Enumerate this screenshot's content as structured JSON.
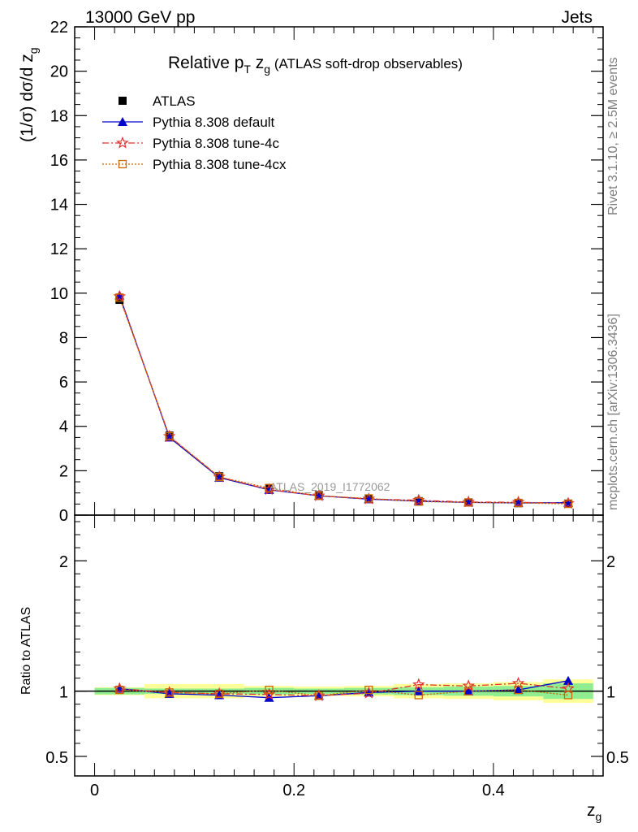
{
  "header": {
    "left": "13000 GeV pp",
    "right": "Jets"
  },
  "side_labels": {
    "rivet": "Rivet 3.1.10, ≥ 2.5M events",
    "mcplots": "mcplots.cern.ch [arXiv:1306.3436]"
  },
  "chart_data": [
    {
      "type": "line",
      "panel": "main",
      "title_main": "Relative p",
      "title_sub_t": "T",
      "title_z": " z",
      "title_sub_g": "g",
      "title_paren": " (ATLAS soft-drop observables)",
      "ylabel": "(1/σ) dσ/d z",
      "ylabel_sub": "g",
      "watermark": "ATLAS_2019_I1772062",
      "xlim": [
        -0.02,
        0.51
      ],
      "ylim": [
        0,
        22
      ],
      "yticks": [
        "0",
        "2",
        "4",
        "6",
        "8",
        "10",
        "12",
        "14",
        "16",
        "18",
        "20",
        "22"
      ],
      "x": [
        0.025,
        0.075,
        0.125,
        0.175,
        0.225,
        0.275,
        0.325,
        0.375,
        0.425,
        0.475
      ],
      "legend_position": "top-left",
      "series": [
        {
          "name": "ATLAS",
          "color": "#000000",
          "marker": "square-filled",
          "line": "none",
          "values": [
            9.7,
            3.58,
            1.75,
            1.2,
            0.9,
            0.74,
            0.63,
            0.57,
            0.54,
            0.52
          ]
        },
        {
          "name": "Pythia 8.308 default",
          "color": "#0000cc",
          "marker": "triangle-filled",
          "line": "solid",
          "values": [
            9.9,
            3.5,
            1.69,
            1.14,
            0.87,
            0.72,
            0.63,
            0.57,
            0.55,
            0.56
          ]
        },
        {
          "name": "Pythia 8.308 tune-4c",
          "color": "#e03030",
          "marker": "star-open",
          "line": "dashdot",
          "values": [
            9.85,
            3.55,
            1.72,
            1.15,
            0.87,
            0.73,
            0.67,
            0.59,
            0.58,
            0.53
          ]
        },
        {
          "name": "Pythia 8.308 tune-4cx",
          "color": "#cc6600",
          "marker": "square-open",
          "line": "dotted",
          "values": [
            9.8,
            3.55,
            1.72,
            1.22,
            0.87,
            0.75,
            0.61,
            0.57,
            0.55,
            0.51
          ]
        }
      ]
    },
    {
      "type": "line",
      "panel": "ratio",
      "ylabel": "Ratio to ATLAS",
      "xlabel": "z",
      "xlabel_sub": "g",
      "xlim": [
        -0.02,
        0.51
      ],
      "ylim": [
        0.35,
        2.35
      ],
      "xticks": [
        "0",
        "0.2",
        "0.4"
      ],
      "yticks": [
        "0.5",
        "1",
        "2"
      ],
      "x": [
        0.025,
        0.075,
        0.125,
        0.175,
        0.225,
        0.275,
        0.325,
        0.375,
        0.425,
        0.475
      ],
      "bin_edges": [
        0.0,
        0.05,
        0.1,
        0.15,
        0.2,
        0.25,
        0.3,
        0.35,
        0.4,
        0.45,
        0.5
      ],
      "uncertainty_bands": {
        "stat_color": "#90ee90",
        "total_color": "#ffff99",
        "stat": [
          0.025,
          0.02,
          0.02,
          0.025,
          0.02,
          0.025,
          0.03,
          0.035,
          0.04,
          0.06
        ],
        "total": [
          0.03,
          0.055,
          0.055,
          0.04,
          0.035,
          0.04,
          0.055,
          0.06,
          0.07,
          0.09
        ]
      },
      "series": [
        {
          "name": "Pythia 8.308 default",
          "color": "#0000cc",
          "marker": "triangle-filled",
          "line": "solid",
          "values": [
            1.02,
            0.98,
            0.97,
            0.95,
            0.965,
            0.99,
            1.0,
            1.0,
            1.01,
            1.08
          ]
        },
        {
          "name": "Pythia 8.308 tune-4c",
          "color": "#e03030",
          "marker": "star-open",
          "line": "dashdot",
          "values": [
            1.02,
            0.99,
            0.98,
            0.975,
            0.965,
            0.985,
            1.05,
            1.04,
            1.06,
            1.02
          ]
        },
        {
          "name": "Pythia 8.308 tune-4cx",
          "color": "#cc6600",
          "marker": "square-open",
          "line": "dotted",
          "values": [
            1.01,
            0.99,
            0.98,
            1.01,
            0.965,
            1.01,
            0.97,
            1.0,
            1.01,
            0.97
          ]
        }
      ]
    }
  ]
}
